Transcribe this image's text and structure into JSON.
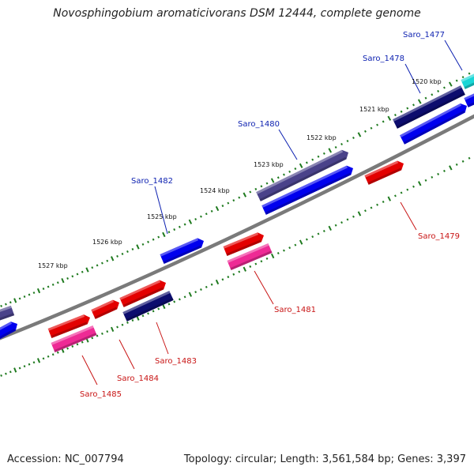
{
  "title": "Novosphingobium aromaticivorans DSM 12444, complete genome",
  "footer": {
    "accession": "Accession: NC_007794",
    "topology": "Topology: circular; Length: 3,561,584 bp; Genes: 3,397"
  },
  "colors": {
    "backbone": "#7a7a7a",
    "tick": "#1f7a1f",
    "label_forward": "#0b1fb0",
    "label_reverse": "#c81414",
    "red_gene": "#e30000",
    "pink_gene": "#ee2a95",
    "blue_gene": "#0000ee",
    "navy_gene": "#0c0c6e",
    "slate_gene": "#4a428a",
    "cyan_gene": "#19d6d6"
  },
  "scale_labels": [
    "1520 kbp",
    "1521 kbp",
    "1522 kbp",
    "1523 kbp",
    "1524 kbp",
    "1525 kbp",
    "1526 kbp",
    "1527 kbp"
  ],
  "genes": [
    {
      "name": "Saro_1477",
      "strand": "forward",
      "color": "cyan_gene"
    },
    {
      "name": "Saro_1478",
      "strand": "forward",
      "color": "navy_gene"
    },
    {
      "name": "Saro_1479",
      "strand": "reverse",
      "color": "red_gene"
    },
    {
      "name": "Saro_1480",
      "strand": "forward",
      "color": "slate_gene"
    },
    {
      "name": "Saro_1481",
      "strand": "reverse",
      "color": "red_gene"
    },
    {
      "name": "Saro_1482",
      "strand": "forward",
      "color": "blue_gene"
    },
    {
      "name": "Saro_1483",
      "strand": "reverse",
      "color": "navy_gene"
    },
    {
      "name": "Saro_1484",
      "strand": "reverse",
      "color": "red_gene"
    },
    {
      "name": "Saro_1485",
      "strand": "reverse",
      "color": "red_gene"
    }
  ]
}
